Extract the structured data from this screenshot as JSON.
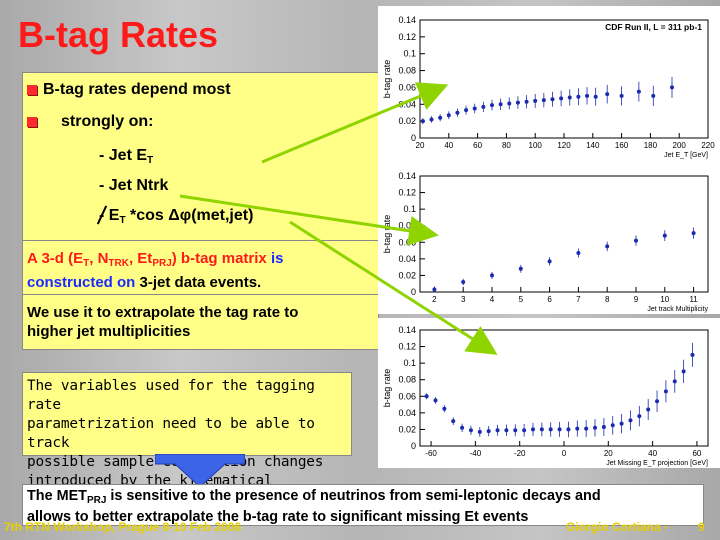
{
  "slide": {
    "title": "B-tag Rates",
    "bullet1a": "B-tag rates depend most",
    "bullet1b": "strongly on:",
    "item1_prefix": "- Jet E",
    "item1_sub": "T",
    "item2": "- Jet Ntrk",
    "item3_prefix": "- E",
    "item3_sub": "T",
    "item3_rest": " *cos ",
    "item3_delta": "Δφ",
    "item3_end": "(met,jet)",
    "matrix": {
      "p1": "A 3-d (E",
      "s1": "T",
      "p2": ", N",
      "s2": "TRK",
      "p3": ", Et",
      "s3": "PRJ",
      "p4": ") b-tag matrix ",
      "p5": "is",
      "line2a": "constructed on ",
      "line2b": "3-jet data events."
    },
    "extrap_line1": "We use it to extrapolate the tag rate to",
    "extrap_line2": "higher jet multiplicities",
    "var_line1": "The variables used for the tagging rate",
    "var_line2": "parametrization need to be able to track",
    "var_line3": "possible sample composition changes",
    "var_line4": "introduced by the kinematical selection",
    "bottom_p1": "The MET",
    "bottom_s1": "PRJ",
    "bottom_p2": " is sensitive to the presence of neutrinos from semi-leptonic decays and",
    "bottom_line2": "allows to better extrapolate the b-tag rate to significant missing Et events",
    "footer_left": "7th RTN Workshop, Prague 8-10 Feb 2006",
    "footer_right": "Giorgio Cortiana -",
    "footer_page": "9"
  },
  "chart_data": [
    {
      "type": "scatter",
      "title": "CDF Run II, L = 311 pb-1",
      "xlabel": "Jet E_T [GeV]",
      "ylabel": "b-tag rate",
      "xlim": [
        20,
        220
      ],
      "ylim": [
        0,
        0.14
      ],
      "xticks": [
        20,
        40,
        60,
        80,
        100,
        120,
        140,
        160,
        180,
        200,
        220
      ],
      "yticks": [
        0,
        0.02,
        0.04,
        0.06,
        0.08,
        0.1,
        0.12,
        0.14
      ],
      "x": [
        22,
        28,
        34,
        40,
        46,
        52,
        58,
        64,
        70,
        76,
        82,
        88,
        94,
        100,
        106,
        112,
        118,
        124,
        130,
        136,
        142,
        150,
        160,
        172,
        182,
        195
      ],
      "y": [
        0.02,
        0.022,
        0.024,
        0.027,
        0.03,
        0.033,
        0.035,
        0.037,
        0.039,
        0.04,
        0.041,
        0.042,
        0.043,
        0.044,
        0.045,
        0.046,
        0.047,
        0.048,
        0.049,
        0.05,
        0.049,
        0.052,
        0.05,
        0.055,
        0.05,
        0.06
      ]
    },
    {
      "type": "scatter",
      "xlabel": "Jet track Multiplicity",
      "ylabel": "b-tag rate",
      "xlim": [
        1.5,
        11.5
      ],
      "ylim": [
        0,
        0.14
      ],
      "xticks": [
        2,
        3,
        4,
        5,
        6,
        7,
        8,
        9,
        10,
        11
      ],
      "yticks": [
        0,
        0.02,
        0.04,
        0.06,
        0.08,
        0.1,
        0.12,
        0.14
      ],
      "x": [
        2,
        3,
        4,
        5,
        6,
        7,
        8,
        9,
        10,
        11
      ],
      "y": [
        0.003,
        0.012,
        0.02,
        0.028,
        0.037,
        0.047,
        0.055,
        0.062,
        0.068,
        0.071
      ]
    },
    {
      "type": "scatter",
      "xlabel": "Jet Missing E_T projection [GeV]",
      "ylabel": "b-tag rate",
      "xlim": [
        -65,
        65
      ],
      "ylim": [
        0,
        0.14
      ],
      "xticks": [
        -60,
        -40,
        -20,
        0,
        20,
        40,
        60
      ],
      "yticks": [
        0,
        0.02,
        0.04,
        0.06,
        0.08,
        0.1,
        0.12,
        0.14
      ],
      "x": [
        -62,
        -58,
        -54,
        -50,
        -46,
        -42,
        -38,
        -34,
        -30,
        -26,
        -22,
        -18,
        -14,
        -10,
        -6,
        -2,
        2,
        6,
        10,
        14,
        18,
        22,
        26,
        30,
        34,
        38,
        42,
        46,
        50,
        54,
        58
      ],
      "y": [
        0.06,
        0.055,
        0.045,
        0.03,
        0.022,
        0.019,
        0.017,
        0.018,
        0.019,
        0.019,
        0.019,
        0.019,
        0.02,
        0.02,
        0.02,
        0.02,
        0.02,
        0.021,
        0.021,
        0.022,
        0.023,
        0.025,
        0.027,
        0.031,
        0.036,
        0.044,
        0.054,
        0.066,
        0.078,
        0.09,
        0.11
      ]
    }
  ]
}
